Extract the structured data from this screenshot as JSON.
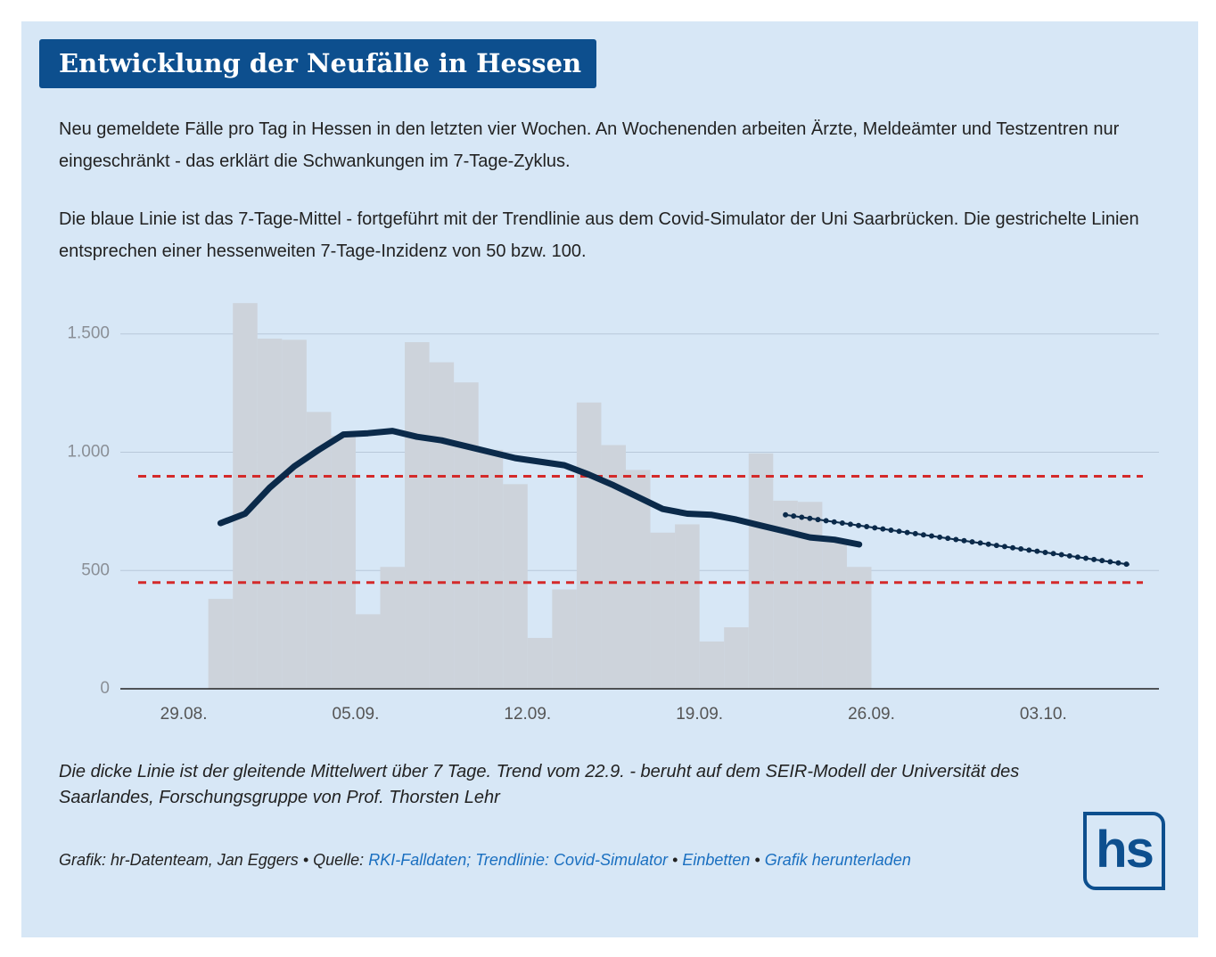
{
  "header": {
    "title": "Entwicklung der Neufälle in Hessen"
  },
  "description": [
    "Neu gemeldete Fälle pro Tag in Hessen in den letzten vier Wochen. An Wochenenden arbeiten Ärzte, Meldeämter und Testzentren nur eingeschränkt - das erklärt die Schwankungen im 7-Tage-Zyklus.",
    "Die blaue Linie ist das 7-Tage-Mittel - fortgeführt mit der Trendlinie aus dem Covid-Simulator der Uni Saarbrücken. Die gestrichelte Linien entsprechen einer hessenweiten 7-Tage-Inzidenz von 50 bzw. 100."
  ],
  "chart_data": {
    "type": "bar",
    "categories": [
      null,
      null,
      "29.08.",
      null,
      null,
      null,
      null,
      null,
      null,
      "05.09.",
      null,
      null,
      null,
      null,
      null,
      null,
      "12.09.",
      null,
      null,
      null,
      null,
      null,
      null,
      "19.09.",
      null,
      null,
      null,
      null,
      null,
      null,
      "26.09.",
      null,
      null,
      null,
      null,
      null,
      null,
      "03.10.",
      null,
      null,
      null
    ],
    "series": [
      {
        "type": "bar",
        "color": "#cdd3db",
        "values": [
          null,
          null,
          null,
          380,
          1630,
          1480,
          1475,
          1170,
          1070,
          315,
          515,
          1465,
          1380,
          1295,
          1010,
          865,
          215,
          420,
          1210,
          1030,
          925,
          660,
          695,
          200,
          260,
          995,
          795,
          790,
          625,
          515,
          null,
          null,
          null,
          null,
          null,
          null,
          null,
          null,
          null,
          null,
          null
        ]
      },
      {
        "type": "line",
        "color": "#0b2a4a",
        "values": [
          null,
          null,
          null,
          700,
          740,
          850,
          940,
          1010,
          1075,
          1080,
          1090,
          1065,
          1050,
          1025,
          1000,
          975,
          960,
          945,
          905,
          860,
          810,
          760,
          740,
          735,
          715,
          690,
          665,
          640,
          630,
          610,
          null,
          null,
          null,
          null,
          null,
          null,
          null,
          null,
          null,
          null,
          null
        ]
      },
      {
        "type": "line",
        "style": "dotted",
        "color": "#0b2a4a",
        "values": [
          null,
          null,
          null,
          null,
          null,
          null,
          null,
          null,
          null,
          null,
          null,
          null,
          null,
          null,
          null,
          null,
          null,
          null,
          null,
          null,
          null,
          null,
          null,
          null,
          null,
          null,
          735,
          720,
          705,
          690,
          675,
          660,
          645,
          630,
          615,
          600,
          585,
          570,
          555,
          540,
          525
        ]
      }
    ],
    "reference_lines": {
      "values": [
        449,
        898
      ],
      "color": "#d42a2a"
    },
    "ylim": [
      0,
      1700
    ],
    "yticks": [
      0,
      500,
      {
        "value": 1000,
        "label": "1.000"
      },
      {
        "value": 1500,
        "label": "1.500"
      }
    ],
    "grid": true
  },
  "footnote": "Die dicke Linie ist der gleitende Mittelwert über 7 Tage. Trend vom 22.9. - beruht auf dem SEIR-Modell der Universität des Saarlandes, Forschungsgruppe von Prof. Thorsten Lehr",
  "credits": {
    "text": "Grafik: hr-Datenteam, Jan Eggers",
    "separator": "•",
    "source_label": "Quelle:",
    "links": [
      "RKI-Falldaten; Trendlinie: Covid-Simulator",
      "Einbetten",
      "Grafik herunterladen"
    ]
  },
  "logo": "hs"
}
